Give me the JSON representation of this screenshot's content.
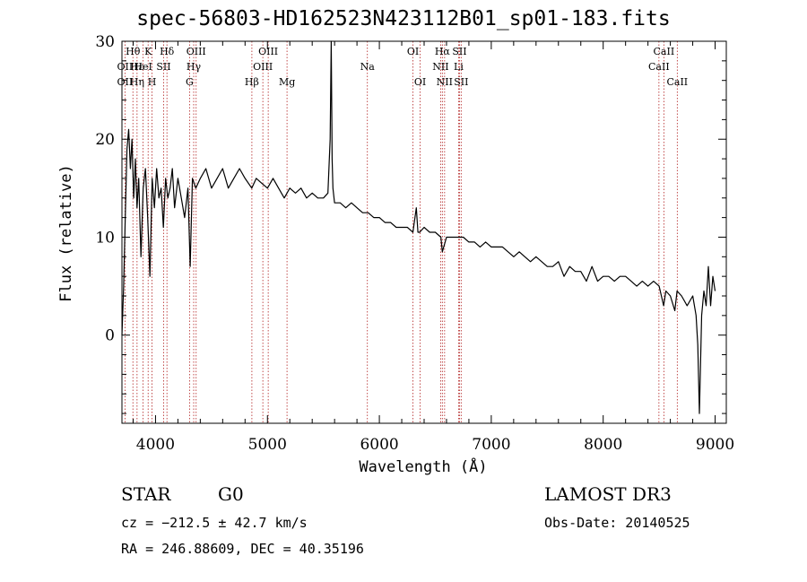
{
  "chart_data": {
    "type": "line",
    "title": "spec-56803-HD162523N423112B01_sp01-183.fits",
    "xlabel": "Wavelength (Å)",
    "ylabel": "Flux (relative)",
    "xlim": [
      3700,
      9100
    ],
    "ylim": [
      -9,
      30
    ],
    "xticks": [
      4000,
      5000,
      6000,
      7000,
      8000,
      9000
    ],
    "yticks": [
      0,
      10,
      20,
      30
    ],
    "series": [
      {
        "name": "flux",
        "x": [
          3700,
          3715,
          3730,
          3745,
          3760,
          3775,
          3790,
          3805,
          3820,
          3835,
          3850,
          3870,
          3890,
          3910,
          3930,
          3950,
          3970,
          3990,
          4010,
          4030,
          4050,
          4070,
          4090,
          4110,
          4130,
          4150,
          4170,
          4200,
          4230,
          4260,
          4290,
          4310,
          4330,
          4360,
          4400,
          4450,
          4500,
          4550,
          4600,
          4650,
          4700,
          4750,
          4800,
          4860,
          4900,
          4950,
          5000,
          5050,
          5100,
          5150,
          5200,
          5250,
          5300,
          5350,
          5400,
          5450,
          5500,
          5540,
          5560,
          5570,
          5578,
          5585,
          5600,
          5650,
          5700,
          5750,
          5800,
          5850,
          5900,
          5950,
          6000,
          6050,
          6100,
          6150,
          6200,
          6250,
          6300,
          6330,
          6345,
          6360,
          6400,
          6450,
          6500,
          6550,
          6563,
          6600,
          6650,
          6700,
          6750,
          6800,
          6850,
          6900,
          6950,
          7000,
          7050,
          7100,
          7150,
          7200,
          7250,
          7300,
          7350,
          7400,
          7450,
          7500,
          7550,
          7600,
          7650,
          7700,
          7750,
          7800,
          7850,
          7900,
          7950,
          8000,
          8050,
          8100,
          8150,
          8200,
          8250,
          8300,
          8350,
          8400,
          8450,
          8500,
          8540,
          8560,
          8600,
          8640,
          8660,
          8700,
          8750,
          8800,
          8830,
          8845,
          8860,
          8880,
          8900,
          8920,
          8940,
          8960,
          8980,
          9000
        ],
        "y": [
          0,
          5,
          12,
          19,
          21,
          17,
          20,
          14,
          18,
          13,
          16,
          8,
          15,
          17,
          12,
          6,
          16,
          13,
          17,
          14,
          15,
          11,
          16,
          14,
          15,
          17,
          13,
          16,
          14,
          12,
          15,
          7,
          16,
          15,
          16,
          17,
          15,
          16,
          17,
          15,
          16,
          17,
          16,
          15,
          16,
          15.5,
          15,
          16,
          15,
          14,
          15,
          14.5,
          15,
          14,
          14.5,
          14,
          14,
          14.5,
          20,
          30,
          18,
          15,
          13.5,
          13.5,
          13,
          13.5,
          13,
          12.5,
          12.5,
          12,
          12,
          11.5,
          11.5,
          11,
          11,
          11,
          10.5,
          13,
          10.5,
          10.5,
          11,
          10.5,
          10.5,
          10,
          8.5,
          10,
          10,
          10,
          10,
          9.5,
          9.5,
          9,
          9.5,
          9,
          9,
          9,
          8.5,
          8,
          8.5,
          8,
          7.5,
          8,
          7.5,
          7,
          7,
          7.5,
          6,
          7,
          6.5,
          6.5,
          5.5,
          7,
          5.5,
          6,
          6,
          5.5,
          6,
          6,
          5.5,
          5,
          5.5,
          5,
          5.5,
          5,
          3,
          4.5,
          4,
          2.5,
          4.5,
          4,
          3,
          4,
          2,
          -1,
          -8,
          2,
          4.5,
          3,
          7,
          3,
          6,
          4.5
        ]
      }
    ],
    "line_markers": [
      {
        "label": "Hθ",
        "x": 3798,
        "row": 0
      },
      {
        "label": "OII",
        "x": 3727,
        "row": 1
      },
      {
        "label": "OII",
        "x": 3727,
        "row": 2
      },
      {
        "label": "Hε",
        "x": 3835,
        "row": 1
      },
      {
        "label": "Hη",
        "x": 3835,
        "row": 2
      },
      {
        "label": "K",
        "x": 3934,
        "row": 0
      },
      {
        "label": "HeI",
        "x": 3889,
        "row": 1
      },
      {
        "label": "H",
        "x": 3969,
        "row": 2
      },
      {
        "label": "Hδ",
        "x": 4102,
        "row": 0
      },
      {
        "label": "SII",
        "x": 4072,
        "row": 1
      },
      {
        "label": "OIII",
        "x": 4363,
        "row": 0
      },
      {
        "label": "Hγ",
        "x": 4341,
        "row": 1
      },
      {
        "label": "G",
        "x": 4304,
        "row": 2
      },
      {
        "label": "Hβ",
        "x": 4861,
        "row": 2
      },
      {
        "label": "OIII",
        "x": 5007,
        "row": 0
      },
      {
        "label": "OIII",
        "x": 4959,
        "row": 1
      },
      {
        "label": "Mg",
        "x": 5175,
        "row": 2
      },
      {
        "label": "Na",
        "x": 5893,
        "row": 1
      },
      {
        "label": "OI",
        "x": 6300,
        "row": 0
      },
      {
        "label": "OI",
        "x": 6364,
        "row": 2
      },
      {
        "label": "Hα",
        "x": 6563,
        "row": 0
      },
      {
        "label": "SII",
        "x": 6716,
        "row": 0
      },
      {
        "label": "NII",
        "x": 6548,
        "row": 1
      },
      {
        "label": "Li",
        "x": 6708,
        "row": 1
      },
      {
        "label": "NII",
        "x": 6583,
        "row": 2
      },
      {
        "label": "SII",
        "x": 6731,
        "row": 2
      },
      {
        "label": "CaII",
        "x": 8542,
        "row": 0
      },
      {
        "label": "CaII",
        "x": 8498,
        "row": 1
      },
      {
        "label": "CaII",
        "x": 8662,
        "row": 2
      }
    ],
    "marker_lines": [
      3727,
      3798,
      3835,
      3889,
      3934,
      3969,
      4072,
      4102,
      4304,
      4341,
      4363,
      4861,
      4959,
      5007,
      5175,
      5893,
      6300,
      6364,
      6548,
      6563,
      6583,
      6708,
      6716,
      6731,
      8498,
      8542,
      8662
    ],
    "colors": {
      "marker_line": "#b22222",
      "spectrum": "#000000"
    }
  },
  "info": {
    "class": "STAR",
    "subclass": "G0",
    "survey": "LAMOST DR3",
    "cz": "cz = −212.5 ± 42.7 km/s",
    "obs_date": "Obs-Date: 20140525",
    "coords": "RA = 246.88609, DEC =  40.35196"
  }
}
